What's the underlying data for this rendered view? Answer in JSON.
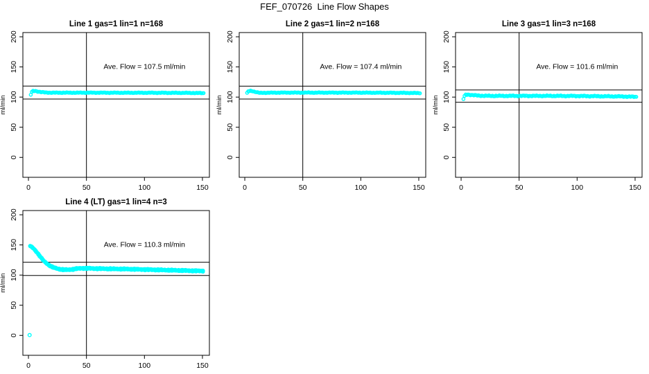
{
  "page": {
    "title": "FEF_070726  Line Flow Shapes"
  },
  "colors": {
    "points": "#00ffff",
    "axis": "#000000",
    "background": "#ffffff"
  },
  "chart_data": [
    {
      "type": "scatter",
      "title": "Line 1 gas=1 lin=1 n=168",
      "annotation": "Ave. Flow =  107.5  ml/min",
      "ave_flow": 107.5,
      "n": 168,
      "xlabel": "",
      "ylabel": "ml/min",
      "xticks": [
        0,
        50,
        100,
        150
      ],
      "yticks": [
        0,
        50,
        100,
        150,
        200
      ],
      "xlim": [
        -4.8,
        156
      ],
      "ylim": [
        -33,
        207
      ],
      "vline_x": 50,
      "hlines": [
        96.8,
        118.3
      ],
      "x_range": [
        2,
        151
      ],
      "band_jitter": 0.6,
      "passes": 1,
      "anchors": [
        [
          2,
          104
        ],
        [
          3,
          108.5
        ],
        [
          4,
          110
        ],
        [
          6,
          110.2
        ],
        [
          8,
          109.3
        ],
        [
          11,
          108.2
        ],
        [
          15,
          107.6
        ],
        [
          20,
          107.3
        ],
        [
          40,
          107.3
        ],
        [
          60,
          107.3
        ],
        [
          80,
          107.2
        ],
        [
          100,
          107.2
        ],
        [
          120,
          107.1
        ],
        [
          135,
          107
        ],
        [
          151,
          106.6
        ]
      ],
      "outliers": []
    },
    {
      "type": "scatter",
      "title": "Line 2 gas=1 lin=2 n=168",
      "annotation": "Ave. Flow =  107.4  ml/min",
      "ave_flow": 107.4,
      "n": 168,
      "xlabel": "",
      "ylabel": "ml/min",
      "xticks": [
        0,
        50,
        100,
        150
      ],
      "yticks": [
        0,
        50,
        100,
        150,
        200
      ],
      "xlim": [
        -4.8,
        156
      ],
      "ylim": [
        -33,
        207
      ],
      "vline_x": 50,
      "hlines": [
        96.7,
        118.1
      ],
      "x_range": [
        2,
        151
      ],
      "band_jitter": 0.6,
      "passes": 1,
      "anchors": [
        [
          2,
          106.5
        ],
        [
          3,
          109.5
        ],
        [
          5,
          110.4
        ],
        [
          7,
          109.8
        ],
        [
          10,
          108.2
        ],
        [
          13,
          106.9
        ],
        [
          18,
          107.2
        ],
        [
          30,
          107.4
        ],
        [
          60,
          107.4
        ],
        [
          90,
          107.4
        ],
        [
          120,
          107.2
        ],
        [
          140,
          107
        ],
        [
          151,
          106.7
        ]
      ],
      "outliers": []
    },
    {
      "type": "scatter",
      "title": "Line 3 gas=1 lin=3 n=168",
      "annotation": "Ave. Flow =  101.6  ml/min",
      "ave_flow": 101.6,
      "n": 168,
      "xlabel": "",
      "ylabel": "ml/min",
      "xticks": [
        0,
        50,
        100,
        150
      ],
      "yticks": [
        0,
        50,
        100,
        150,
        200
      ],
      "xlim": [
        -4.8,
        156
      ],
      "ylim": [
        -33,
        207
      ],
      "vline_x": 50,
      "hlines": [
        91.4,
        111.8
      ],
      "x_range": [
        2,
        151
      ],
      "band_jitter": 0.9,
      "passes": 1,
      "anchors": [
        [
          2,
          97
        ],
        [
          3,
          101.5
        ],
        [
          4,
          103.8
        ],
        [
          6,
          104.2
        ],
        [
          8,
          103.8
        ],
        [
          11,
          103.1
        ],
        [
          15,
          102.4
        ],
        [
          25,
          102
        ],
        [
          50,
          102
        ],
        [
          75,
          102
        ],
        [
          100,
          101.8
        ],
        [
          125,
          101.3
        ],
        [
          140,
          101
        ],
        [
          151,
          100.4
        ]
      ],
      "outliers": []
    },
    {
      "type": "scatter",
      "title": "Line 4 (LT) gas=1 lin=4 n=3",
      "annotation": "Ave. Flow =  110.3  ml/min",
      "ave_flow": 110.3,
      "n": 3,
      "xlabel": "",
      "ylabel": "ml/min",
      "xticks": [
        0,
        50,
        100,
        150
      ],
      "yticks": [
        0,
        50,
        100,
        150,
        200
      ],
      "xlim": [
        -4.8,
        156
      ],
      "ylim": [
        -33,
        207
      ],
      "vline_x": 50,
      "hlines": [
        99.3,
        121.3
      ],
      "x_range": [
        1.5,
        151
      ],
      "band_jitter": 0.7,
      "passes": 3,
      "anchors": [
        [
          1.5,
          148
        ],
        [
          3,
          146.5
        ],
        [
          5,
          143
        ],
        [
          7,
          138.5
        ],
        [
          9,
          133.5
        ],
        [
          11,
          128.5
        ],
        [
          13,
          124
        ],
        [
          15,
          120.5
        ],
        [
          17,
          117.5
        ],
        [
          19,
          115
        ],
        [
          21,
          113
        ],
        [
          24,
          111.2
        ],
        [
          27,
          109.8
        ],
        [
          30,
          109
        ],
        [
          34,
          108.8
        ],
        [
          38,
          109.5
        ],
        [
          42,
          110.8
        ],
        [
          46,
          111.3
        ],
        [
          50,
          111.2
        ],
        [
          58,
          110.8
        ],
        [
          66,
          110.5
        ],
        [
          75,
          110.2
        ],
        [
          85,
          110
        ],
        [
          95,
          109.5
        ],
        [
          105,
          109
        ],
        [
          115,
          108.5
        ],
        [
          125,
          108
        ],
        [
          135,
          107.5
        ],
        [
          145,
          107
        ],
        [
          151,
          106.8
        ]
      ],
      "outliers": [
        [
          1,
          0.5
        ]
      ]
    }
  ]
}
